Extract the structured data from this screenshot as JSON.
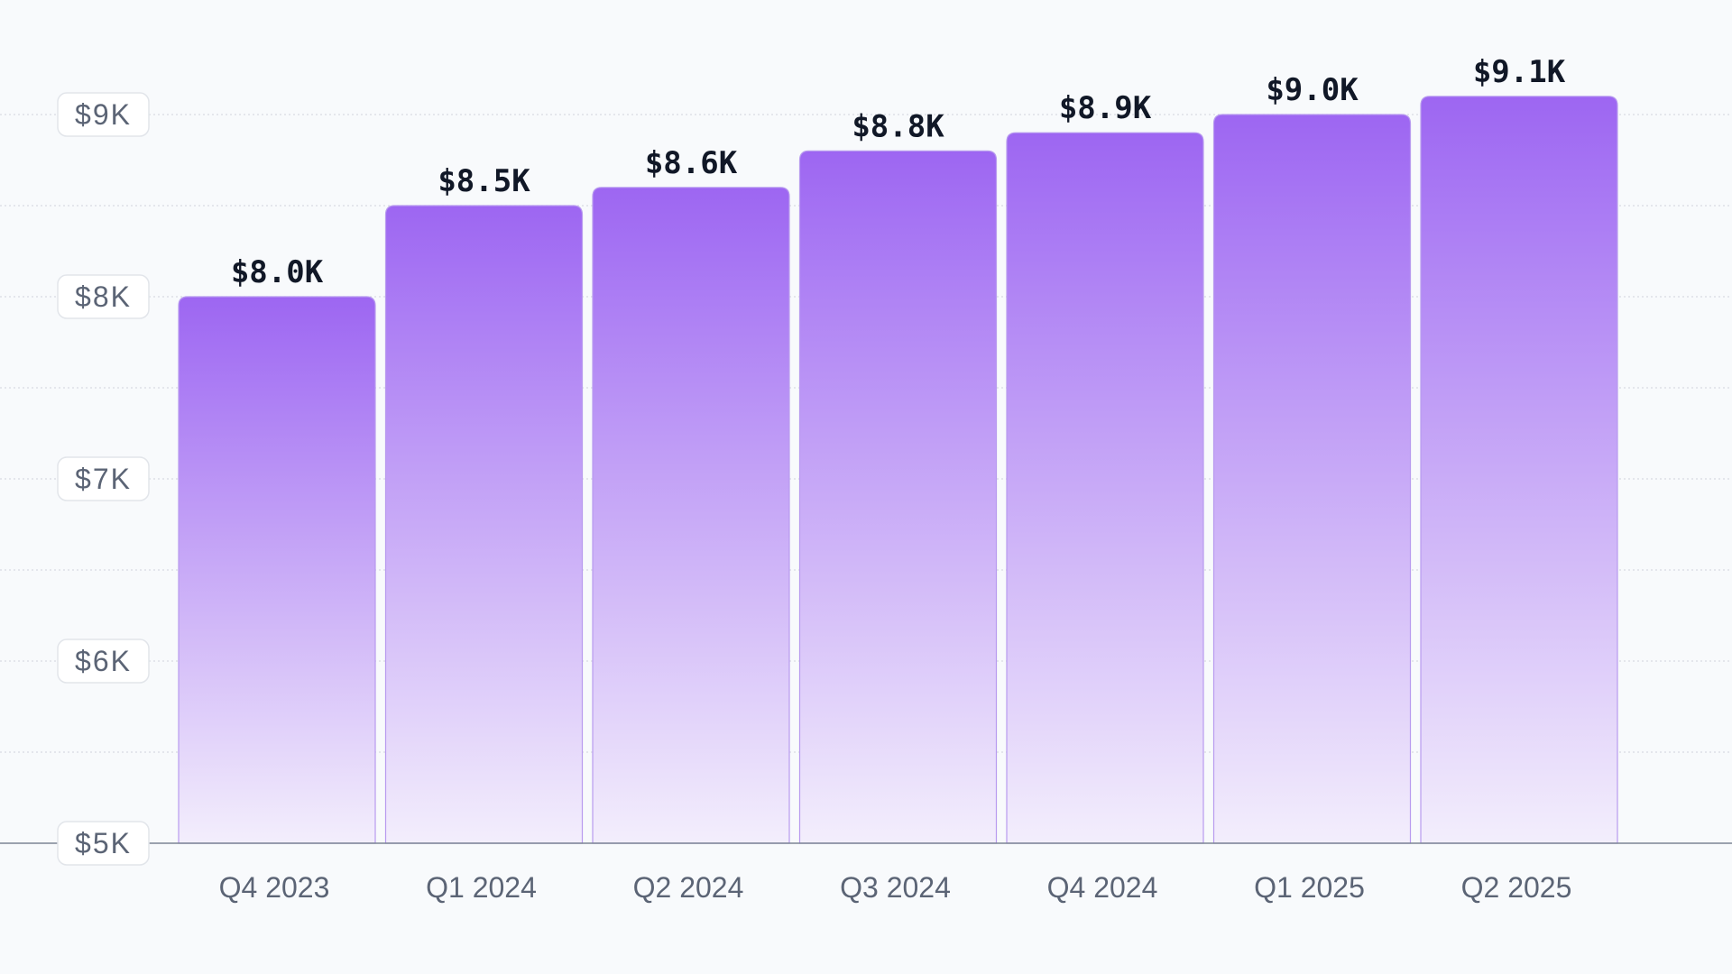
{
  "chart_data": {
    "type": "bar",
    "title": "",
    "xlabel": "",
    "ylabel": "",
    "categories": [
      "Q4 2023",
      "Q1 2024",
      "Q2 2024",
      "Q3 2024",
      "Q4 2024",
      "Q1 2025",
      "Q2 2025"
    ],
    "values": [
      8.0,
      8.5,
      8.6,
      8.8,
      8.9,
      9.0,
      9.1
    ],
    "data_labels": [
      "$8.0K",
      "$8.5K",
      "$8.6K",
      "$8.8K",
      "$8.9K",
      "$9.0K",
      "$9.1K"
    ],
    "ylim": [
      5,
      9.4
    ],
    "yticks": [
      5,
      6,
      7,
      8,
      9
    ],
    "ytick_labels": [
      "$5K",
      "$6K",
      "$7K",
      "$8K",
      "$9K"
    ],
    "grid": true,
    "legend": "none",
    "colors": {
      "bar_top": "#9d66f2",
      "bar_bottom": "#f3eefc",
      "bar_stroke": "#b89bef",
      "grid": "#d7dbe2",
      "axis": "#7c8594",
      "tick_box_fill": "#ffffff",
      "tick_box_stroke": "#e2e5ea"
    }
  }
}
